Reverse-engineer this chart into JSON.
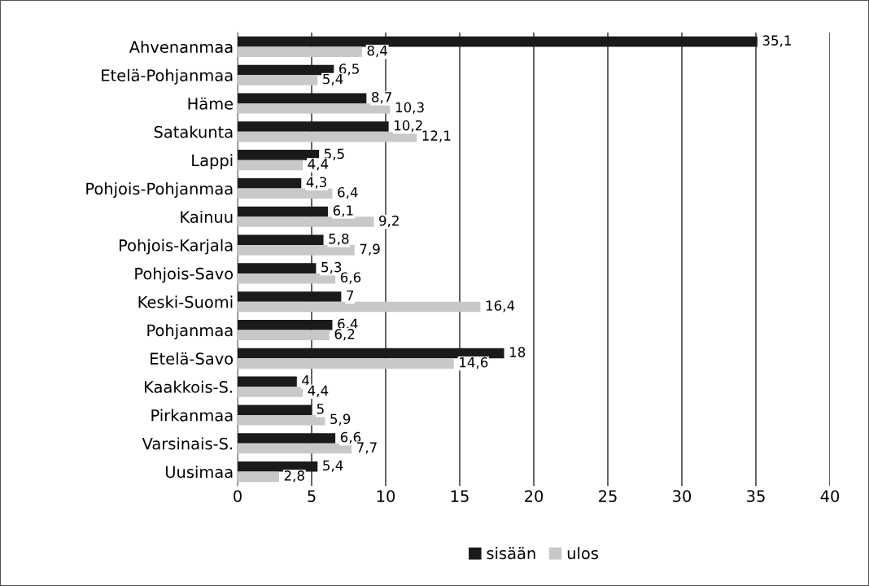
{
  "chart_data": {
    "type": "bar",
    "orientation": "horizontal",
    "categories": [
      "Ahvenanmaa",
      "Etelä-Pohjanmaa",
      "Häme",
      "Satakunta",
      "Lappi",
      "Pohjois-Pohjanmaa",
      "Kainuu",
      "Pohjois-Karjala",
      "Pohjois-Savo",
      "Keski-Suomi",
      "Pohjanmaa",
      "Etelä-Savo",
      "Kaakkois-S.",
      "Pirkanmaa",
      "Varsinais-S.",
      "Uusimaa"
    ],
    "series": [
      {
        "name": "sisään",
        "color": "#1a1a1a",
        "values": [
          35.1,
          6.5,
          8.7,
          10.2,
          5.5,
          4.3,
          6.1,
          5.8,
          5.3,
          7,
          6.4,
          18,
          4,
          5,
          6.6,
          5.4
        ],
        "value_labels": [
          "35,1",
          "6,5",
          "8,7",
          "10,2",
          "5,5",
          "4,3",
          "6,1",
          "5,8",
          "5,3",
          "7",
          "6,4",
          "18",
          "4",
          "5",
          "6,6",
          "5,4"
        ]
      },
      {
        "name": "ulos",
        "color": "#c8c8c8",
        "values": [
          8.4,
          5.4,
          10.3,
          12.1,
          4.4,
          6.4,
          9.2,
          7.9,
          6.6,
          16.4,
          6.2,
          14.6,
          4.4,
          5.9,
          7.7,
          2.8
        ],
        "value_labels": [
          "8,4",
          "5,4",
          "10,3",
          "12,1",
          "4,4",
          "6,4",
          "9,2",
          "7,9",
          "6,6",
          "16,4",
          "6,2",
          "14,6",
          "4,4",
          "5,9",
          "7,7",
          "2,8"
        ]
      }
    ],
    "xlim": [
      0,
      40
    ],
    "xticks": [
      0,
      5,
      10,
      15,
      20,
      25,
      30,
      35,
      40
    ],
    "grid": "x",
    "legend": "bottom"
  }
}
